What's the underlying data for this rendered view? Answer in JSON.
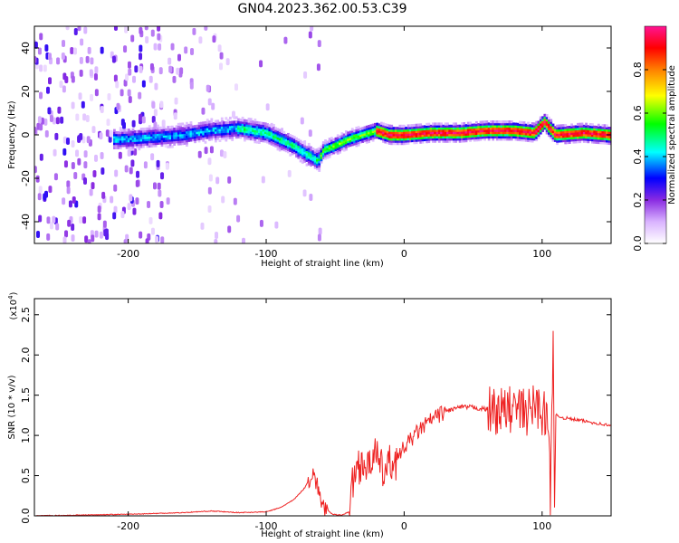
{
  "title": "GN04.2023.362.00.53.C39",
  "chart_data": [
    {
      "type": "heatmap",
      "xlabel": "Height of straight line (km)",
      "ylabel": "Frequency (Hz)",
      "xlim": [
        -268,
        150
      ],
      "ylim": [
        -50,
        50
      ],
      "x_ticks": [
        -200,
        -100,
        0,
        100
      ],
      "x_tick_labels": [
        "-200",
        "-100",
        "0",
        "100"
      ],
      "y_ticks": [
        -40,
        -20,
        0,
        20,
        40
      ],
      "y_tick_labels": [
        "-40",
        "-20",
        "0",
        "20",
        "40"
      ],
      "colorbar": {
        "label": "Normalized spectral amplitude",
        "range": [
          0,
          1
        ],
        "ticks": [
          0.0,
          0.2,
          0.4,
          0.6,
          0.8
        ],
        "tick_labels": [
          "0.0",
          "0.2",
          "0.4",
          "0.6",
          "0.8"
        ],
        "colormap": [
          "#ffffff",
          "#d9b3ff",
          "#8a2be2",
          "#0000ff",
          "#00ffff",
          "#00ff00",
          "#ffff00",
          "#ff8000",
          "#ff0000",
          "#ff1493"
        ]
      },
      "ridge": {
        "x": [
          -205,
          -180,
          -160,
          -140,
          -120,
          -100,
          -90,
          -80,
          -70,
          -62,
          -58,
          -50,
          -40,
          -30,
          -20,
          -10,
          0,
          20,
          40,
          60,
          80,
          95,
          102,
          110,
          130,
          150
        ],
        "y": [
          -2,
          -1,
          0,
          2,
          3,
          1,
          -2,
          -5,
          -9,
          -12,
          -7,
          -5,
          -2,
          0,
          2,
          0,
          0,
          1,
          1,
          2,
          2,
          1,
          6,
          0,
          1,
          0
        ]
      }
    },
    {
      "type": "line",
      "xlabel": "Height of straight line (km)",
      "ylabel": "SNR (10 * v/v)",
      "y_multiplier": "(x10",
      "y_multiplier_exp": "4",
      "y_multiplier_close": ")",
      "xlim": [
        -268,
        150
      ],
      "ylim": [
        0,
        2.7
      ],
      "x_ticks": [
        -200,
        -100,
        0,
        100
      ],
      "x_tick_labels": [
        "-200",
        "-100",
        "0",
        "100"
      ],
      "y_ticks": [
        0.0,
        0.5,
        1.0,
        1.5,
        2.0,
        2.5
      ],
      "y_tick_labels": [
        "0.0",
        "0.5",
        "1.0",
        "1.5",
        "2.0",
        "2.5"
      ],
      "series": [
        {
          "color": "#ee2222",
          "x": [
            -268,
            -200,
            -160,
            -140,
            -120,
            -100,
            -90,
            -80,
            -72,
            -66,
            -62,
            -58,
            -52,
            -45,
            -40,
            -36,
            -30,
            -26,
            -22,
            -18,
            -14,
            -10,
            -5,
            0,
            5,
            10,
            20,
            30,
            40,
            50,
            60,
            70,
            80,
            90,
            95,
            100,
            104,
            106,
            108,
            109,
            110,
            115,
            130,
            150
          ],
          "y": [
            0.0,
            0.02,
            0.04,
            0.06,
            0.04,
            0.05,
            0.1,
            0.2,
            0.35,
            0.55,
            0.3,
            0.1,
            0.02,
            0.01,
            0.05,
            0.55,
            0.7,
            0.55,
            0.85,
            0.6,
            0.55,
            0.65,
            0.7,
            0.85,
            0.95,
            1.05,
            1.2,
            1.3,
            1.35,
            1.35,
            1.32,
            1.3,
            1.33,
            1.28,
            1.4,
            1.3,
            1.2,
            0.3,
            2.3,
            0.1,
            1.25,
            1.22,
            1.18,
            1.12
          ]
        }
      ]
    }
  ]
}
